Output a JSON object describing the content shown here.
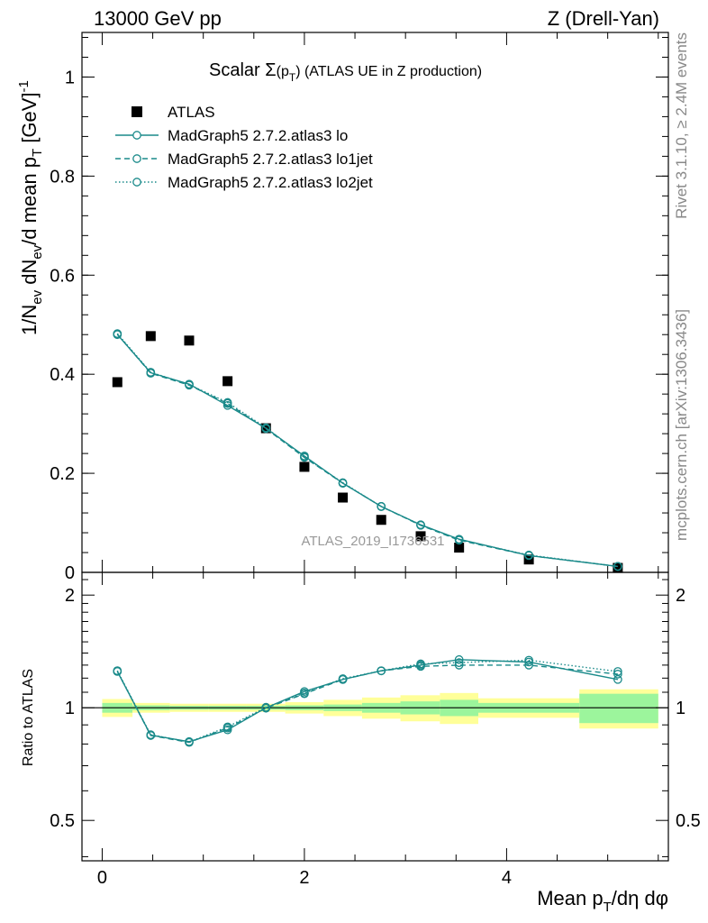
{
  "header": {
    "left": "13000 GeV pp",
    "right": "Z (Drell-Yan)"
  },
  "side_labels": {
    "rivet": "Rivet 3.1.10, ≥ 2.4M events",
    "mcplots": "mcplots.cern.ch [arXiv:1306.3436]"
  },
  "watermark": "ATLAS_2019_I1736531",
  "colors": {
    "mc": "#1a8a8a",
    "data": "#000000",
    "band_inner": "#9cf59c",
    "band_outer": "#ffff99"
  },
  "chart_data": [
    {
      "type": "scatter",
      "panel": "main",
      "title": "Scalar Σ(p_T) (ATLAS UE in Z production)",
      "title_parts": {
        "pre": "Scalar Σ",
        "paren_open": "(p",
        "sub": "T",
        "paren_close": ")",
        "post": " (ATLAS UE in Z production)"
      },
      "ylabel": "1/N_ev dN_ev/d mean p_T [GeV]^-1",
      "ylabel_parts": {
        "a": "1/N",
        "a_sub": "ev",
        "b": " dN",
        "b_sub": "ev",
        "c": "/d mean p",
        "c_sub": "T",
        "d": " [GeV]",
        "d_sup": "-1"
      },
      "xlim": [
        -0.2,
        5.6
      ],
      "ylim": [
        0,
        1.09
      ],
      "yticks": [
        0,
        0.2,
        0.4,
        0.6,
        0.8,
        1
      ],
      "ytick_labels": [
        "0",
        "0.2",
        "0.4",
        "0.6",
        "0.8",
        "1"
      ],
      "legend_position": "top-left",
      "series": [
        {
          "name": "ATLAS",
          "style": "marker",
          "x": [
            0.15,
            0.48,
            0.86,
            1.24,
            1.62,
            2.0,
            2.38,
            2.76,
            3.15,
            3.53,
            4.22,
            5.1
          ],
          "y": [
            0.384,
            0.477,
            0.468,
            0.386,
            0.291,
            0.213,
            0.151,
            0.106,
            0.073,
            0.05,
            0.026,
            0.009
          ]
        },
        {
          "name": "MadGraph5 2.7.2.atlas3 lo",
          "style": "solid",
          "x": [
            0.15,
            0.48,
            0.86,
            1.24,
            1.62,
            2.0,
            2.38,
            2.76,
            3.15,
            3.53,
            4.22,
            5.1
          ],
          "y": [
            0.48,
            0.403,
            0.38,
            0.337,
            0.291,
            0.235,
            0.18,
            0.133,
            0.096,
            0.067,
            0.034,
            0.012
          ]
        },
        {
          "name": "MadGraph5 2.7.2.atlas3 lo1jet",
          "style": "dashed",
          "x": [
            0.15,
            0.48,
            0.86,
            1.24,
            1.62,
            2.0,
            2.38,
            2.76,
            3.15,
            3.53,
            4.22,
            5.1
          ],
          "y": [
            0.481,
            0.402,
            0.378,
            0.341,
            0.29,
            0.232,
            0.18,
            0.133,
            0.095,
            0.065,
            0.034,
            0.012
          ]
        },
        {
          "name": "MadGraph5 2.7.2.atlas3 lo2jet",
          "style": "dotted",
          "x": [
            0.15,
            0.48,
            0.86,
            1.24,
            1.62,
            2.0,
            2.38,
            2.76,
            3.15,
            3.53,
            4.22,
            5.1
          ],
          "y": [
            0.482,
            0.404,
            0.379,
            0.343,
            0.292,
            0.233,
            0.181,
            0.133,
            0.096,
            0.066,
            0.035,
            0.012
          ]
        }
      ]
    },
    {
      "type": "line",
      "panel": "ratio",
      "xlabel": "Mean p_T/dη dφ",
      "xlabel_parts": {
        "pre": "Mean p",
        "sub": "T",
        "post": "/dη dφ"
      },
      "ylabel": "Ratio to ATLAS",
      "xlim": [
        -0.2,
        5.6
      ],
      "ylim": [
        0.39,
        2.3
      ],
      "scale": "log",
      "xticks": [
        0,
        2,
        4
      ],
      "xtick_labels": [
        "0",
        "2",
        "4"
      ],
      "yticks": [
        0.5,
        1,
        2
      ],
      "ytick_labels": [
        "0.5",
        "1",
        "2"
      ],
      "bands": {
        "x_edges": [
          0.0,
          0.3,
          0.67,
          1.05,
          1.43,
          1.81,
          2.19,
          2.57,
          2.95,
          3.34,
          3.72,
          4.72,
          5.5
        ],
        "inner": [
          0.03,
          0.015,
          0.012,
          0.012,
          0.012,
          0.015,
          0.02,
          0.03,
          0.04,
          0.05,
          0.03,
          0.09
        ],
        "outer": [
          0.055,
          0.03,
          0.025,
          0.025,
          0.025,
          0.035,
          0.05,
          0.065,
          0.08,
          0.095,
          0.06,
          0.12
        ]
      },
      "series": [
        {
          "name": "MadGraph5 2.7.2.atlas3 lo",
          "style": "solid",
          "x": [
            0.15,
            0.48,
            0.86,
            1.24,
            1.62,
            2.0,
            2.38,
            2.76,
            3.15,
            3.53,
            4.22,
            5.1
          ],
          "y": [
            1.25,
            0.845,
            0.812,
            0.873,
            1.0,
            1.105,
            1.19,
            1.255,
            1.3,
            1.345,
            1.325,
            1.19
          ]
        },
        {
          "name": "MadGraph5 2.7.2.atlas3 lo1jet",
          "style": "dashed",
          "x": [
            0.15,
            0.48,
            0.86,
            1.24,
            1.62,
            2.0,
            2.38,
            2.76,
            3.15,
            3.53,
            4.22,
            5.1
          ],
          "y": [
            1.252,
            0.843,
            0.808,
            0.883,
            0.997,
            1.09,
            1.19,
            1.255,
            1.29,
            1.3,
            1.3,
            1.23
          ]
        },
        {
          "name": "MadGraph5 2.7.2.atlas3 lo2jet",
          "style": "dotted",
          "x": [
            0.15,
            0.48,
            0.86,
            1.24,
            1.62,
            2.0,
            2.38,
            2.76,
            3.15,
            3.53,
            4.22,
            5.1
          ],
          "y": [
            1.256,
            0.847,
            0.81,
            0.889,
            1.003,
            1.094,
            1.196,
            1.255,
            1.31,
            1.32,
            1.34,
            1.25
          ]
        }
      ]
    }
  ]
}
